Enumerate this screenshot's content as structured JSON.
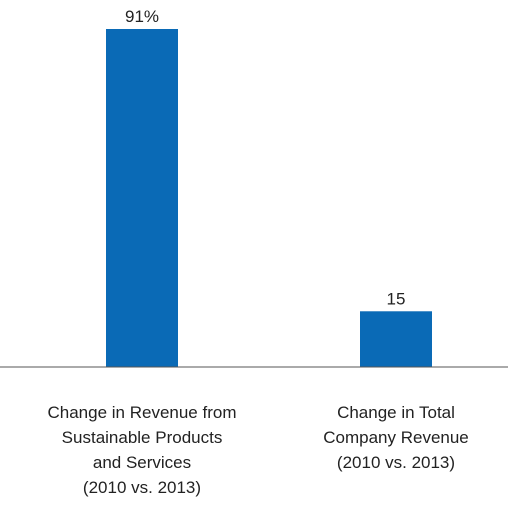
{
  "chart_data": {
    "type": "bar",
    "categories": [
      [
        "Change in Revenue from",
        "Sustainable Products",
        "and Services",
        "(2010 vs. 2013)"
      ],
      [
        "Change in Total",
        "Company Revenue",
        "(2010 vs. 2013)"
      ]
    ],
    "values": [
      91,
      15
    ],
    "data_labels": [
      "91%",
      "15"
    ],
    "title": "",
    "xlabel": "",
    "ylabel": "",
    "ylim": [
      0,
      91
    ],
    "grid": false,
    "legend": "none",
    "colors": {
      "bar": "#0a6ab6",
      "axis": "#555555",
      "text": "#222222"
    }
  }
}
